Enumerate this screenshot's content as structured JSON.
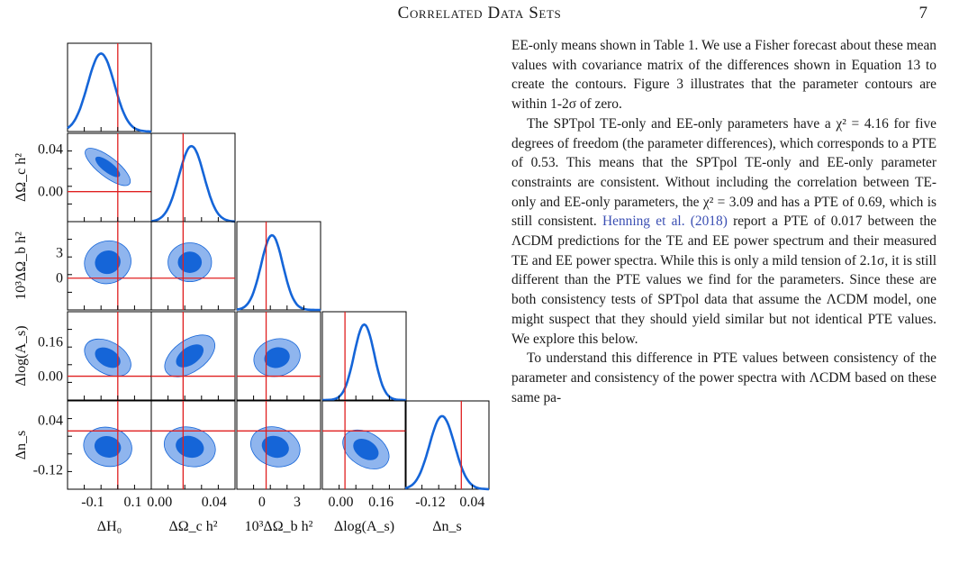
{
  "header": {
    "running_title": "Correlated Data Sets",
    "page_number": "7"
  },
  "figure": {
    "parameters": [
      "ΔH₀",
      "ΔΩ_c h²",
      "10³ΔΩ_b h²",
      "Δlog(A_s)",
      "Δn_s"
    ],
    "row_labels": [
      "ΔΩ_c h²",
      "10³ΔΩ_b h²",
      "Δlog(A_s)",
      "Δn_s"
    ],
    "x_ticks": [
      [
        "-0.1",
        "0.1"
      ],
      [
        "0.00",
        "0.04"
      ],
      [
        "0",
        "3"
      ],
      [
        "0.00",
        "0.16"
      ],
      [
        "-0.12",
        "0.04"
      ]
    ],
    "y_ticks": [
      [
        "0.04",
        "0.00"
      ],
      [
        "3",
        "0"
      ],
      [
        "0.16",
        "0.00"
      ],
      [
        "0.04",
        "-0.12"
      ]
    ],
    "colors": {
      "curve": "#1565d8",
      "contour_inner": "#1565d8",
      "contour_outer": "#8fb5ee",
      "zero_line": "#e02020"
    }
  },
  "body": {
    "p1": "EE-only means shown in Table 1. We use a Fisher forecast about these mean values with covariance matrix of the differences shown in Equation 13 to create the contours. Figure 3 illustrates that the parameter contours are within 1-2σ of zero.",
    "p2a": "The SPTpol TE-only and EE-only parameters have a χ² = 4.16 for five degrees of freedom (the parameter differences), which corresponds to a PTE of 0.53. This means that the SPTpol TE-only and EE-only parameter constraints are consistent. Without including the correlation between TE-only and EE-only parameters, the χ² = 3.09 and has a PTE of 0.69, which is still consistent.",
    "p2_cite": "Henning et al. (2018)",
    "p2b": "report a PTE of 0.017 between the ΛCDM predictions for the TE and EE power spectrum and their measured TE and EE power spectra. While this is only a mild tension of 2.1σ, it is still different than the PTE values we find for the parameters. Since these are both consistency tests of SPTpol data that assume the ΛCDM model, one might suspect that they should yield similar but not identical PTE values. We explore this below.",
    "p3": "To understand this difference in PTE values between consistency of the parameter and consistency of the power spectra with ΛCDM based on these same pa-"
  }
}
